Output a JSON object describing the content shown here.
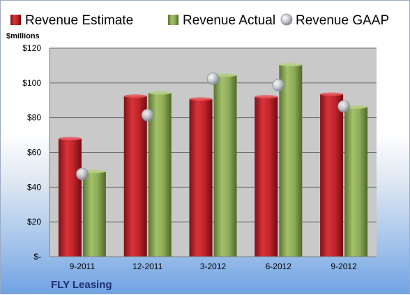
{
  "chart_data": {
    "type": "bar",
    "categories": [
      "9-2011",
      "12-2011",
      "3-2012",
      "6-2012",
      "9-2012"
    ],
    "series": [
      {
        "name": "Revenue Estimate",
        "values": [
          67.9,
          92.4,
          90.7,
          92.0,
          93.5
        ],
        "color": "#c0242b"
      },
      {
        "name": "Revenue Actual",
        "values": [
          49.0,
          94.2,
          104.4,
          110.4,
          86.1
        ],
        "color": "#8eac57"
      },
      {
        "name": "Revenue GAAP",
        "values": [
          47.6,
          81.5,
          102.4,
          98.7,
          86.5
        ],
        "color": "#b8bcc4",
        "style": "marker"
      }
    ],
    "ylabel": "$millions",
    "ylim": [
      0,
      120
    ],
    "yticks": [
      0,
      20,
      40,
      60,
      80,
      100,
      120
    ],
    "ytick_labels": [
      "$-",
      "$20",
      "$40",
      "$60",
      "$80",
      "$100",
      "$120"
    ],
    "grid": true,
    "legend": "top"
  },
  "company": "FLY Leasing"
}
